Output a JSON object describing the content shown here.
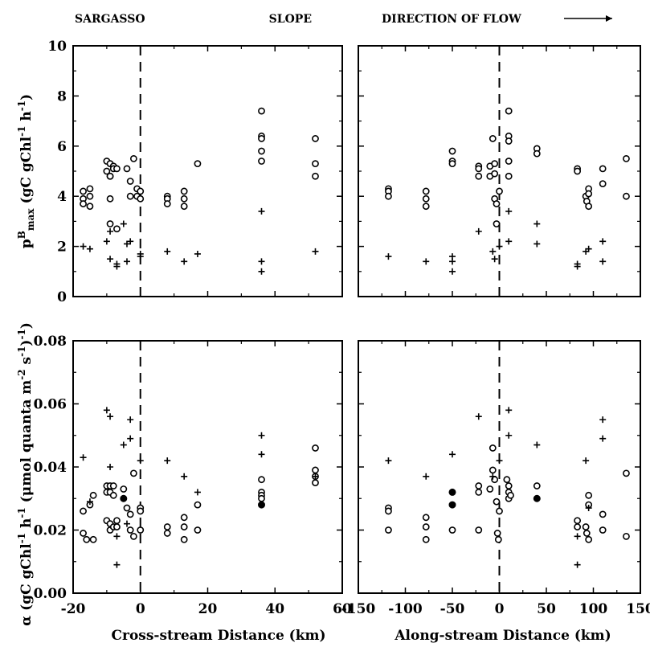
{
  "header": {
    "left": "SARGASSO",
    "middle": "SLOPE",
    "right": "DIRECTION OF FLOW"
  },
  "chart_data": [
    {
      "type": "scatter",
      "panel": "top-left",
      "xlabel": "",
      "ylabel_main": "p",
      "ylabel_sup": "B",
      "ylabel_sub": "max",
      "ylabel_units": " (gC gChl",
      "ylabel_units_sup1": "-1",
      "ylabel_units_mid": " h",
      "ylabel_units_sup2": "-1",
      "ylabel_units_end": ")",
      "xlim": [
        -20,
        60
      ],
      "ylim": [
        0,
        10
      ],
      "xticks": [
        "-20",
        "0",
        "20",
        "40",
        "60"
      ],
      "yticks": [
        "0",
        "2",
        "4",
        "6",
        "8",
        "10"
      ],
      "vline_x": 0,
      "series": [
        {
          "marker": "open-circle",
          "points": [
            [
              -17,
              4.2
            ],
            [
              -17,
              3.9
            ],
            [
              -17,
              3.7
            ],
            [
              -15,
              4.3
            ],
            [
              -15,
              4.0
            ],
            [
              -15,
              3.6
            ],
            [
              -10,
              5.4
            ],
            [
              -10,
              5.0
            ],
            [
              -9,
              5.3
            ],
            [
              -9,
              4.8
            ],
            [
              -8,
              5.2
            ],
            [
              -8,
              5.1
            ],
            [
              -7,
              5.1
            ],
            [
              -9,
              3.9
            ],
            [
              -4,
              5.1
            ],
            [
              -3,
              4.6
            ],
            [
              -3,
              4.0
            ],
            [
              -2,
              5.5
            ],
            [
              -1,
              4.3
            ],
            [
              -1,
              4.0
            ],
            [
              0,
              4.2
            ],
            [
              0,
              3.9
            ],
            [
              -9,
              2.9
            ],
            [
              -7,
              2.7
            ],
            [
              -9,
              4.8
            ],
            [
              8,
              4.0
            ],
            [
              8,
              3.9
            ],
            [
              8,
              3.7
            ],
            [
              13,
              4.2
            ],
            [
              13,
              3.9
            ],
            [
              13,
              3.6
            ],
            [
              17,
              5.3
            ],
            [
              36,
              7.4
            ],
            [
              36,
              6.4
            ],
            [
              36,
              6.3
            ],
            [
              36,
              5.8
            ],
            [
              36,
              5.4
            ],
            [
              52,
              6.3
            ],
            [
              52,
              5.3
            ],
            [
              52,
              4.8
            ]
          ]
        },
        {
          "marker": "plus",
          "points": [
            [
              -17,
              2.0
            ],
            [
              -15,
              1.9
            ],
            [
              -10,
              2.2
            ],
            [
              -9,
              2.6
            ],
            [
              -9,
              1.5
            ],
            [
              -7,
              1.3
            ],
            [
              -7,
              1.2
            ],
            [
              -5,
              2.9
            ],
            [
              -4,
              2.1
            ],
            [
              -3,
              2.2
            ],
            [
              -4,
              1.4
            ],
            [
              0,
              1.7
            ],
            [
              0,
              1.6
            ],
            [
              8,
              1.8
            ],
            [
              13,
              1.4
            ],
            [
              17,
              1.7
            ],
            [
              36,
              3.4
            ],
            [
              36,
              1.4
            ],
            [
              36,
              1.0
            ],
            [
              52,
              1.8
            ]
          ]
        }
      ]
    },
    {
      "type": "scatter",
      "panel": "top-right",
      "xlabel": "",
      "xlim": [
        -150,
        150
      ],
      "ylim": [
        0,
        10
      ],
      "xticks": [
        "-150",
        "-100",
        "-50",
        "0",
        "50",
        "100",
        "150"
      ],
      "vline_x": 0,
      "series": [
        {
          "marker": "open-circle",
          "points": [
            [
              -118,
              4.3
            ],
            [
              -118,
              4.2
            ],
            [
              -118,
              4.0
            ],
            [
              -78,
              4.2
            ],
            [
              -78,
              3.9
            ],
            [
              -78,
              3.6
            ],
            [
              -50,
              5.8
            ],
            [
              -50,
              5.4
            ],
            [
              -50,
              5.3
            ],
            [
              -22,
              5.2
            ],
            [
              -22,
              5.1
            ],
            [
              -22,
              4.8
            ],
            [
              -10,
              5.2
            ],
            [
              -10,
              4.8
            ],
            [
              -7,
              6.3
            ],
            [
              -5,
              5.3
            ],
            [
              -5,
              4.9
            ],
            [
              -5,
              3.9
            ],
            [
              -3,
              3.7
            ],
            [
              -3,
              2.9
            ],
            [
              0,
              4.2
            ],
            [
              10,
              7.4
            ],
            [
              10,
              6.4
            ],
            [
              10,
              6.2
            ],
            [
              10,
              5.4
            ],
            [
              10,
              4.8
            ],
            [
              40,
              5.9
            ],
            [
              40,
              5.7
            ],
            [
              83,
              5.1
            ],
            [
              83,
              5.0
            ],
            [
              92,
              4.0
            ],
            [
              93,
              3.8
            ],
            [
              95,
              4.3
            ],
            [
              95,
              4.1
            ],
            [
              95,
              3.6
            ],
            [
              110,
              5.1
            ],
            [
              110,
              4.5
            ],
            [
              135,
              5.5
            ],
            [
              135,
              4.0
            ]
          ]
        },
        {
          "marker": "plus",
          "points": [
            [
              -118,
              1.6
            ],
            [
              -78,
              1.4
            ],
            [
              -50,
              1.6
            ],
            [
              -50,
              1.4
            ],
            [
              -50,
              1.0
            ],
            [
              -22,
              2.6
            ],
            [
              -7,
              1.8
            ],
            [
              -5,
              1.5
            ],
            [
              0,
              2.0
            ],
            [
              10,
              3.4
            ],
            [
              10,
              2.2
            ],
            [
              40,
              2.9
            ],
            [
              40,
              2.1
            ],
            [
              83,
              1.3
            ],
            [
              83,
              1.2
            ],
            [
              92,
              1.8
            ],
            [
              95,
              1.9
            ],
            [
              110,
              2.2
            ],
            [
              110,
              1.4
            ]
          ]
        }
      ]
    },
    {
      "type": "scatter",
      "panel": "bottom-left",
      "xlabel": "Cross-stream Distance (km)",
      "ylabel_main": "α",
      "ylabel_units": " (gC gChl",
      "ylabel_units_sup1": "-1",
      "ylabel_units_mid": " h",
      "ylabel_units_sup2": "-1",
      "ylabel_units_mid2": " (μmol quanta m",
      "ylabel_units_sup3": "-2",
      "ylabel_units_mid3": " s",
      "ylabel_units_sup4": "-1",
      "ylabel_units_mid4": ")",
      "ylabel_units_sup5": "-1",
      "ylabel_units_end": ")",
      "xlim": [
        -20,
        60
      ],
      "ylim": [
        0,
        0.08
      ],
      "xticks": [
        "-20",
        "0",
        "20",
        "40",
        "60"
      ],
      "yticks": [
        "0.00",
        "0.02",
        "0.04",
        "0.06",
        "0.08"
      ],
      "vline_x": 0,
      "series": [
        {
          "marker": "open-circle",
          "points": [
            [
              -17,
              0.026
            ],
            [
              -17,
              0.019
            ],
            [
              -16,
              0.017
            ],
            [
              -15,
              0.028
            ],
            [
              -14,
              0.031
            ],
            [
              -14,
              0.017
            ],
            [
              -10,
              0.034
            ],
            [
              -10,
              0.032
            ],
            [
              -10,
              0.023
            ],
            [
              -9,
              0.034
            ],
            [
              -9,
              0.032
            ],
            [
              -9,
              0.022
            ],
            [
              -9,
              0.02
            ],
            [
              -8,
              0.034
            ],
            [
              -8,
              0.031
            ],
            [
              -8,
              0.021
            ],
            [
              -7,
              0.023
            ],
            [
              -7,
              0.021
            ],
            [
              -5,
              0.033
            ],
            [
              -4,
              0.027
            ],
            [
              -3,
              0.025
            ],
            [
              -3,
              0.02
            ],
            [
              -2,
              0.038
            ],
            [
              -2,
              0.018
            ],
            [
              0,
              0.027
            ],
            [
              0,
              0.026
            ],
            [
              0,
              0.02
            ],
            [
              8,
              0.021
            ],
            [
              8,
              0.019
            ],
            [
              13,
              0.024
            ],
            [
              13,
              0.021
            ],
            [
              13,
              0.017
            ],
            [
              17,
              0.028
            ],
            [
              17,
              0.02
            ],
            [
              36,
              0.036
            ],
            [
              36,
              0.032
            ],
            [
              36,
              0.031
            ],
            [
              36,
              0.03
            ],
            [
              52,
              0.046
            ],
            [
              52,
              0.039
            ],
            [
              52,
              0.037
            ],
            [
              52,
              0.035
            ]
          ]
        },
        {
          "marker": "filled-circle",
          "points": [
            [
              -5,
              0.03
            ],
            [
              36,
              0.028
            ]
          ]
        },
        {
          "marker": "plus",
          "points": [
            [
              -17,
              0.043
            ],
            [
              -15,
              0.029
            ],
            [
              -10,
              0.058
            ],
            [
              -9,
              0.056
            ],
            [
              -9,
              0.04
            ],
            [
              -7,
              0.009
            ],
            [
              -7,
              0.018
            ],
            [
              -5,
              0.047
            ],
            [
              -4,
              0.022
            ],
            [
              -3,
              0.055
            ],
            [
              -3,
              0.049
            ],
            [
              0,
              0.042
            ],
            [
              8,
              0.042
            ],
            [
              13,
              0.037
            ],
            [
              17,
              0.032
            ],
            [
              36,
              0.05
            ],
            [
              36,
              0.044
            ],
            [
              52,
              0.037
            ]
          ]
        }
      ]
    },
    {
      "type": "scatter",
      "panel": "bottom-right",
      "xlabel": "Along-stream Distance (km)",
      "xlim": [
        -150,
        150
      ],
      "ylim": [
        0,
        0.08
      ],
      "xticks": [
        "-150",
        "-100",
        "-50",
        "0",
        "50",
        "100",
        "150"
      ],
      "vline_x": 0,
      "series": [
        {
          "marker": "open-circle",
          "points": [
            [
              -118,
              0.027
            ],
            [
              -118,
              0.026
            ],
            [
              -118,
              0.02
            ],
            [
              -78,
              0.024
            ],
            [
              -78,
              0.021
            ],
            [
              -78,
              0.017
            ],
            [
              -50,
              0.02
            ],
            [
              -22,
              0.034
            ],
            [
              -22,
              0.032
            ],
            [
              -22,
              0.02
            ],
            [
              -10,
              0.033
            ],
            [
              -7,
              0.046
            ],
            [
              -7,
              0.039
            ],
            [
              -5,
              0.036
            ],
            [
              -3,
              0.029
            ],
            [
              -2,
              0.019
            ],
            [
              -1,
              0.017
            ],
            [
              0,
              0.026
            ],
            [
              8,
              0.036
            ],
            [
              10,
              0.034
            ],
            [
              10,
              0.032
            ],
            [
              10,
              0.03
            ],
            [
              12,
              0.031
            ],
            [
              40,
              0.034
            ],
            [
              83,
              0.023
            ],
            [
              83,
              0.021
            ],
            [
              92,
              0.021
            ],
            [
              93,
              0.019
            ],
            [
              95,
              0.031
            ],
            [
              95,
              0.028
            ],
            [
              95,
              0.017
            ],
            [
              110,
              0.025
            ],
            [
              110,
              0.02
            ],
            [
              135,
              0.038
            ],
            [
              135,
              0.018
            ]
          ]
        },
        {
          "marker": "filled-circle",
          "points": [
            [
              -50,
              0.032
            ],
            [
              -50,
              0.028
            ],
            [
              40,
              0.03
            ]
          ]
        },
        {
          "marker": "plus",
          "points": [
            [
              -118,
              0.042
            ],
            [
              -78,
              0.037
            ],
            [
              -50,
              0.044
            ],
            [
              -22,
              0.056
            ],
            [
              -7,
              0.037
            ],
            [
              0,
              0.042
            ],
            [
              10,
              0.058
            ],
            [
              10,
              0.05
            ],
            [
              40,
              0.047
            ],
            [
              83,
              0.018
            ],
            [
              83,
              0.009
            ],
            [
              92,
              0.042
            ],
            [
              95,
              0.027
            ],
            [
              110,
              0.055
            ],
            [
              110,
              0.049
            ]
          ]
        }
      ]
    }
  ]
}
